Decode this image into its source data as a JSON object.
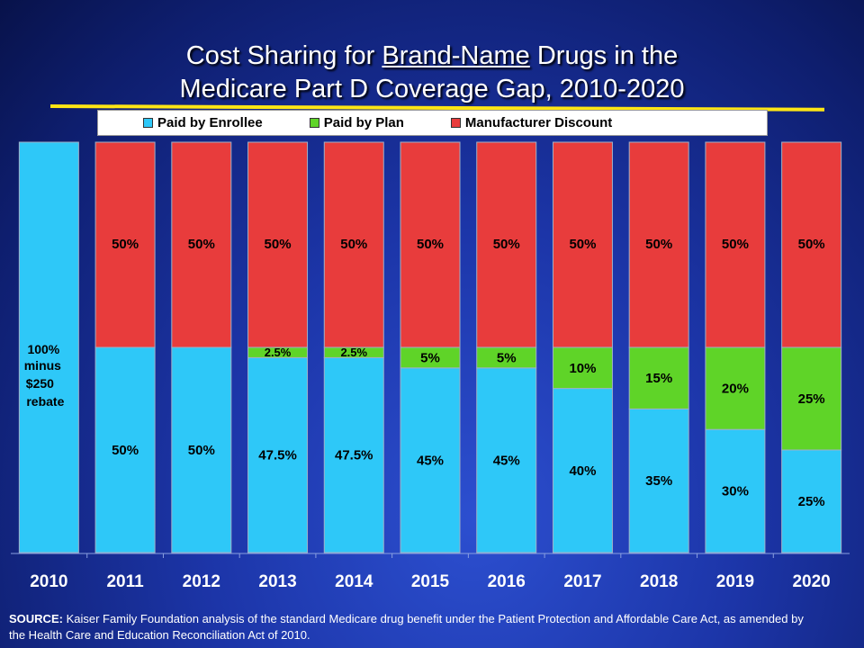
{
  "title_line1_pre": "Cost Sharing for ",
  "title_line1_underlined": "Brand-Name",
  "title_line1_post": " Drugs in the",
  "title_line2": "Medicare Part D Coverage Gap, 2010-2020",
  "source_label": "SOURCE:",
  "source_text": " Kaiser Family Foundation analysis of the standard Medicare drug benefit under the Patient Protection and Affordable Care Act, as amended by the Health Care and Education Reconciliation Act of 2010.",
  "colors": {
    "enrollee": "#2ec8f8",
    "plan": "#5fd428",
    "manufacturer": "#e83c3c",
    "title_rule": "#ffe614"
  },
  "chart_data": {
    "type": "bar",
    "stacked": true,
    "categories": [
      "2010",
      "2011",
      "2012",
      "2013",
      "2014",
      "2015",
      "2016",
      "2017",
      "2018",
      "2019",
      "2020"
    ],
    "ylim": [
      0,
      100
    ],
    "series": [
      {
        "name": "Paid by Enrollee",
        "color_key": "enrollee",
        "values": [
          100,
          50,
          50,
          47.5,
          47.5,
          45,
          45,
          40,
          35,
          30,
          25
        ],
        "labels": [
          "100%|minus|$250|rebate",
          "50%",
          "50%",
          "47.5%",
          "47.5%",
          "45%",
          "45%",
          "40%",
          "35%",
          "30%",
          "25%"
        ]
      },
      {
        "name": "Paid by Plan",
        "color_key": "plan",
        "values": [
          0,
          0,
          0,
          2.5,
          2.5,
          5,
          5,
          10,
          15,
          20,
          25
        ],
        "labels": [
          "",
          "",
          "",
          "2.5%",
          "2.5%",
          "5%",
          "5%",
          "10%",
          "15%",
          "20%",
          "25%"
        ]
      },
      {
        "name": "Manufacturer Discount",
        "color_key": "manufacturer",
        "values": [
          0,
          50,
          50,
          50,
          50,
          50,
          50,
          50,
          50,
          50,
          50
        ],
        "labels": [
          "",
          "50%",
          "50%",
          "50%",
          "50%",
          "50%",
          "50%",
          "50%",
          "50%",
          "50%",
          "50%"
        ]
      }
    ]
  }
}
